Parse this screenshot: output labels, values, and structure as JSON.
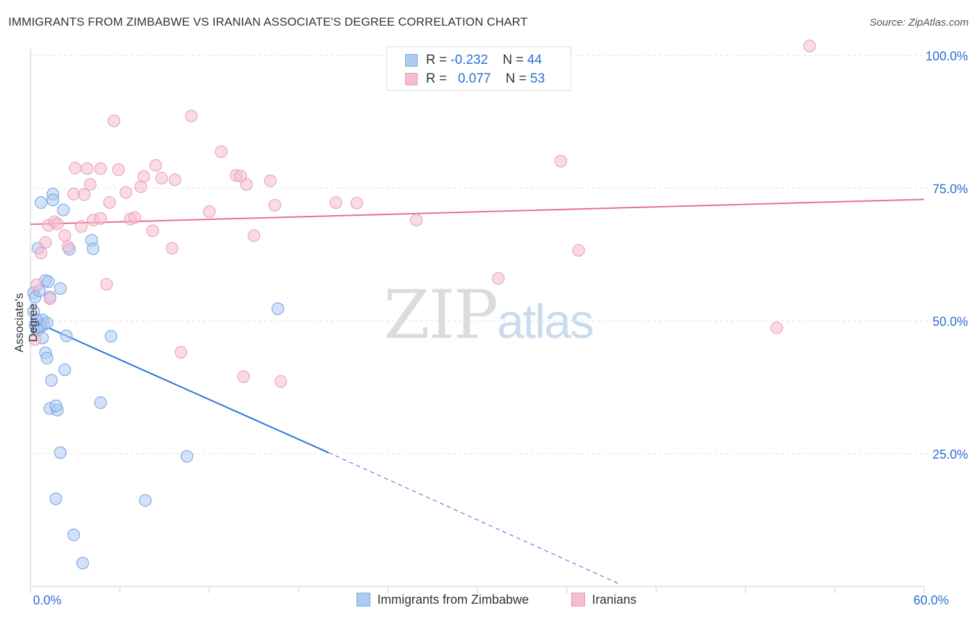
{
  "title": "IMMIGRANTS FROM ZIMBABWE VS IRANIAN ASSOCIATE'S DEGREE CORRELATION CHART",
  "source": "Source: ZipAtlas.com",
  "watermark": {
    "zip": "ZIP",
    "atlas": "atlas"
  },
  "colors": {
    "blue": "#2b6fd6",
    "blue_fill": "#aecbf2",
    "pink": "#e06f98",
    "pink_fill": "#f6bcd0"
  },
  "legend_stats": [
    {
      "r_label": "R =",
      "r_value": "-0.232",
      "n_label": "N =",
      "n_value": "44"
    },
    {
      "r_label": "R =",
      "r_value": "0.077",
      "n_label": "N =",
      "n_value": "53"
    }
  ],
  "chart_data": {
    "type": "scatter",
    "xlabel": "",
    "ylabel": "Associate's Degree",
    "xlim": [
      0,
      60
    ],
    "ylim": [
      0,
      104
    ],
    "x_tick_labels": [
      {
        "value": 0,
        "label": "0.0%"
      },
      {
        "value": 60,
        "label": "60.0%"
      }
    ],
    "y_tick_labels": [
      {
        "value": 25,
        "label": "25.0%"
      },
      {
        "value": 50,
        "label": "50.0%"
      },
      {
        "value": 75,
        "label": "75.0%"
      },
      {
        "value": 100,
        "label": "100.0%"
      }
    ],
    "series": [
      {
        "name": "Immigrants from Zimbabwe",
        "color": "#2b6fd6",
        "points": [
          [
            0.2,
            55.3
          ],
          [
            0.3,
            54.5
          ],
          [
            0.2,
            51.8
          ],
          [
            0.3,
            49.2
          ],
          [
            0.4,
            48.8
          ],
          [
            0.5,
            49.5
          ],
          [
            0.5,
            48.3
          ],
          [
            0.6,
            55.7
          ],
          [
            0.5,
            63.7
          ],
          [
            0.7,
            49.2
          ],
          [
            0.8,
            50.2
          ],
          [
            0.8,
            46.8
          ],
          [
            0.7,
            72.3
          ],
          [
            0.9,
            49.3
          ],
          [
            1.0,
            57.6
          ],
          [
            1.0,
            44.0
          ],
          [
            1.1,
            43.0
          ],
          [
            1.2,
            57.4
          ],
          [
            1.3,
            54.5
          ],
          [
            1.3,
            33.5
          ],
          [
            1.4,
            38.8
          ],
          [
            1.5,
            73.9
          ],
          [
            1.5,
            72.8
          ],
          [
            1.7,
            16.5
          ],
          [
            1.8,
            33.2
          ],
          [
            2.0,
            56.1
          ],
          [
            2.0,
            25.2
          ],
          [
            2.2,
            70.9
          ],
          [
            2.3,
            40.8
          ],
          [
            2.4,
            47.2
          ],
          [
            2.6,
            63.5
          ],
          [
            2.9,
            9.7
          ],
          [
            3.5,
            4.4
          ],
          [
            4.1,
            65.2
          ],
          [
            4.2,
            63.6
          ],
          [
            4.7,
            34.6
          ],
          [
            5.4,
            47.1
          ],
          [
            7.7,
            16.2
          ],
          [
            10.5,
            24.5
          ],
          [
            16.6,
            52.3
          ],
          [
            0.6,
            49.0
          ],
          [
            1.1,
            49.6
          ],
          [
            0.4,
            50.2
          ],
          [
            1.7,
            34.0
          ]
        ],
        "trend": {
          "x_start": 0,
          "y_start": 50.2,
          "x_solid_end": 20,
          "y_solid_end": 25.2,
          "x_dash_end": 39.5,
          "y_dash_end": 0.5
        }
      },
      {
        "name": "Iranians",
        "color": "#e06f98",
        "points": [
          [
            0.3,
            46.5
          ],
          [
            0.4,
            56.8
          ],
          [
            0.7,
            62.8
          ],
          [
            1.0,
            64.8
          ],
          [
            1.2,
            68.0
          ],
          [
            1.3,
            54.2
          ],
          [
            1.6,
            68.7
          ],
          [
            1.8,
            68.3
          ],
          [
            2.3,
            66.1
          ],
          [
            2.5,
            64.0
          ],
          [
            2.9,
            73.9
          ],
          [
            3.0,
            78.8
          ],
          [
            3.4,
            67.8
          ],
          [
            3.6,
            73.8
          ],
          [
            3.8,
            78.7
          ],
          [
            4.0,
            75.7
          ],
          [
            4.2,
            69.0
          ],
          [
            4.7,
            69.3
          ],
          [
            4.7,
            78.7
          ],
          [
            5.1,
            56.9
          ],
          [
            5.3,
            72.3
          ],
          [
            5.6,
            87.7
          ],
          [
            5.9,
            78.5
          ],
          [
            6.4,
            74.2
          ],
          [
            6.7,
            69.2
          ],
          [
            7.0,
            69.5
          ],
          [
            7.4,
            75.3
          ],
          [
            7.6,
            77.2
          ],
          [
            8.2,
            67.0
          ],
          [
            8.4,
            79.3
          ],
          [
            8.8,
            76.9
          ],
          [
            9.5,
            63.7
          ],
          [
            9.7,
            76.6
          ],
          [
            10.1,
            44.1
          ],
          [
            10.8,
            88.6
          ],
          [
            12.0,
            70.6
          ],
          [
            12.8,
            81.9
          ],
          [
            13.8,
            77.4
          ],
          [
            14.1,
            77.3
          ],
          [
            14.3,
            39.5
          ],
          [
            14.5,
            75.7
          ],
          [
            15.0,
            66.1
          ],
          [
            16.1,
            76.4
          ],
          [
            16.4,
            71.8
          ],
          [
            16.8,
            38.6
          ],
          [
            20.5,
            72.3
          ],
          [
            21.9,
            72.2
          ],
          [
            25.9,
            69.0
          ],
          [
            31.4,
            58.0
          ],
          [
            35.6,
            80.1
          ],
          [
            36.8,
            63.3
          ],
          [
            50.1,
            48.7
          ],
          [
            52.3,
            101.8
          ]
        ],
        "trend": {
          "x_start": 0,
          "y_start": 68.2,
          "x_end": 60,
          "y_end": 72.9
        }
      }
    ]
  }
}
